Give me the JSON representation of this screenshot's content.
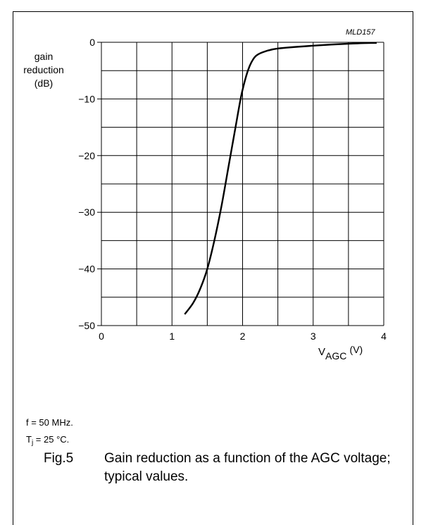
{
  "figure_code": "MLD157",
  "y_label_lines": [
    "gain",
    "reduction",
    "(dB)"
  ],
  "x_label": {
    "main": "V",
    "sub": "AGC",
    "unit": "(V)"
  },
  "conditions": {
    "freq": "f = 50 MHz.",
    "temp_prefix": "T",
    "temp_sub": "j",
    "temp_rest": " = 25 °C."
  },
  "caption": {
    "fig": "Fig.5",
    "text": "Gain reduction as a function of the AGC voltage; typical values."
  },
  "chart_data": {
    "type": "line",
    "title": "",
    "xlabel": "V_AGC (V)",
    "ylabel": "gain reduction (dB)",
    "xlim": [
      0,
      4
    ],
    "ylim": [
      -50,
      0
    ],
    "x_ticks": [
      0,
      1,
      2,
      3,
      4
    ],
    "y_ticks": [
      0,
      -10,
      -20,
      -30,
      -40,
      -50
    ],
    "x_tick_labels": [
      "0",
      "1",
      "2",
      "3",
      "4"
    ],
    "y_tick_labels": [
      "0",
      "−10",
      "−20",
      "−30",
      "−40",
      "−50"
    ],
    "grid": true,
    "series": [
      {
        "name": "",
        "x": [
          1.18,
          1.3,
          1.4,
          1.5,
          1.6,
          1.7,
          1.8,
          1.9,
          1.98,
          2.05,
          2.1,
          2.15,
          2.2,
          2.3,
          2.5,
          3.0,
          3.5,
          3.9
        ],
        "y": [
          -48,
          -46,
          -43.5,
          -40,
          -35,
          -29,
          -22,
          -15,
          -9.5,
          -6,
          -4.2,
          -3,
          -2.3,
          -1.7,
          -1.1,
          -0.6,
          -0.25,
          -0.1
        ]
      }
    ]
  }
}
